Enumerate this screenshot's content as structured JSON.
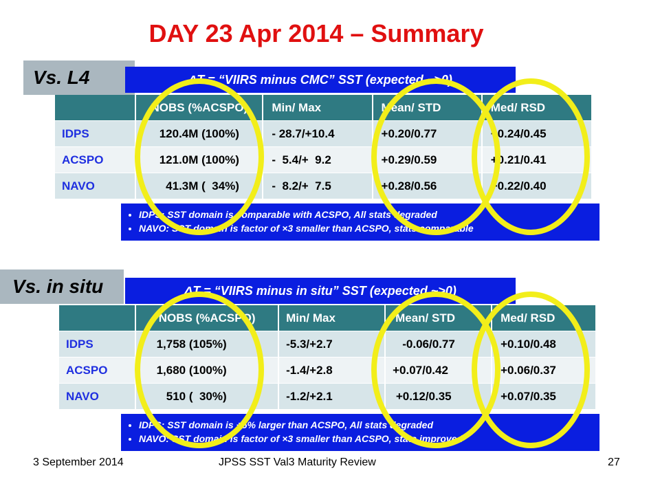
{
  "title": "DAY 23 Apr 2014 – Summary",
  "sections": [
    {
      "label": "Vs. L4",
      "formula": "ΔT = “VIIRS minus CMC” SST (expected ~>0)",
      "headers": [
        "",
        "NOBS (%ACSPO)",
        "Min/ Max",
        "Mean/ STD",
        "Med/ RSD"
      ],
      "rows": [
        [
          "IDPS",
          "120.4M (100%)",
          "- 28.7/+10.4",
          "+0.20/0.77",
          "+0.24/0.45"
        ],
        [
          "ACSPO",
          "121.0M (100%)",
          "-  5.4/+  9.2",
          "+0.29/0.59",
          "+0.21/0.41"
        ],
        [
          "NAVO",
          "  41.3M (  34%)",
          "-  8.2/+  7.5",
          "+0.28/0.56",
          "+0.22/0.40"
        ]
      ],
      "notes": [
        "IDPS: SST domain is comparable with ACSPO, All stats degraded",
        "NAVO: SST domain is factor of ×3 smaller than ACSPO, stats comparable"
      ]
    },
    {
      "label": "Vs. in situ",
      "formula": "ΔT = “VIIRS minus in situ” SST (expected ~>0)",
      "headers": [
        "",
        "NOBS (%ACSPO)",
        "Min/ Max",
        "Mean/ STD",
        "Med/ RSD"
      ],
      "rows": [
        [
          "IDPS",
          "  1,758 (105%)",
          "-5.3/+2.7",
          "   -0.06/0.77",
          "+0.10/0.48"
        ],
        [
          "ACSPO",
          "  1,680 (100%)",
          "-1.4/+2.8",
          "+0.07/0.42",
          "+0.06/0.37"
        ],
        [
          "NAVO",
          "     510 (  30%)",
          "-1.2/+2.1",
          " +0.12/0.35",
          "+0.07/0.35"
        ]
      ],
      "notes": [
        "IDPS: SST domain is +5% larger than ACSPO, All stats degraded",
        "NAVO: SST domain is factor of ×3 smaller than ACSPO, stats improved"
      ]
    }
  ],
  "footer": {
    "date": "3 September 2014",
    "center": "JPSS SST Val3 Maturity Review",
    "page": "27"
  },
  "colors": {
    "title": "#e01010",
    "formula_bg": "#0a1ee0",
    "header_bg": "#2f7a82",
    "circle": "#f2ee1a"
  }
}
